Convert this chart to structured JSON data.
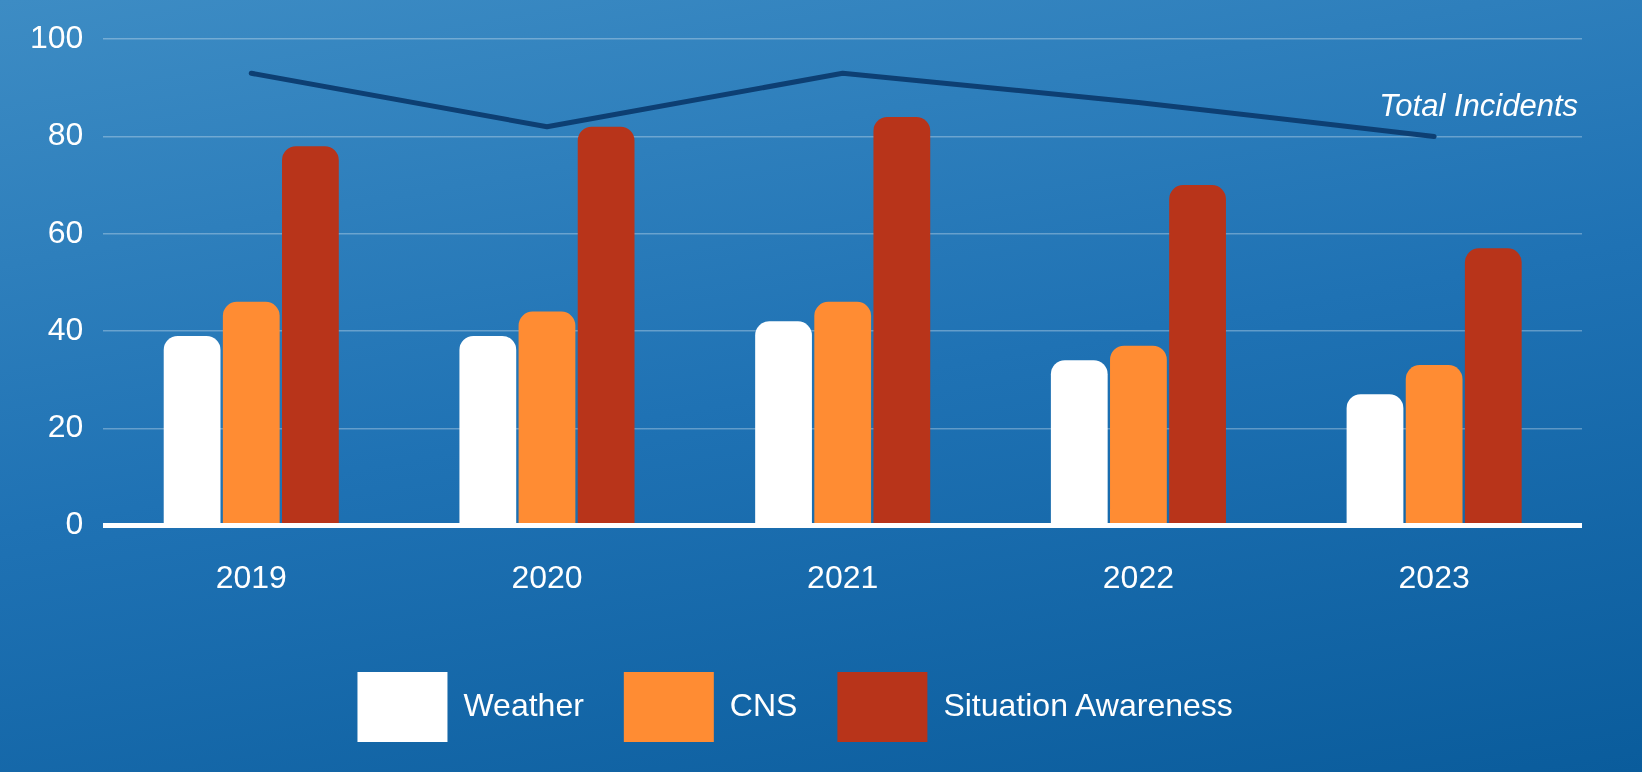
{
  "chart_data": {
    "type": "bar",
    "categories": [
      "2019",
      "2020",
      "2021",
      "2022",
      "2023"
    ],
    "series": [
      {
        "name": "Weather",
        "color": "#ffffff",
        "values": [
          39,
          39,
          42,
          34,
          27
        ]
      },
      {
        "name": "CNS",
        "color": "#ff8c33",
        "values": [
          46,
          44,
          46,
          37,
          33
        ]
      },
      {
        "name": "Situation Awareness",
        "color": "#b8341a",
        "values": [
          78,
          82,
          84,
          70,
          57
        ]
      },
      {
        "name": "Total Incidents",
        "type": "line",
        "color": "#0d3f73",
        "values": [
          93,
          82,
          93,
          87,
          80
        ]
      }
    ],
    "ylim": [
      0,
      100
    ],
    "yticks": [
      0,
      20,
      40,
      60,
      80,
      100
    ],
    "grid": "y",
    "legend": "bottom",
    "marker": "none",
    "line_style": "solid"
  }
}
